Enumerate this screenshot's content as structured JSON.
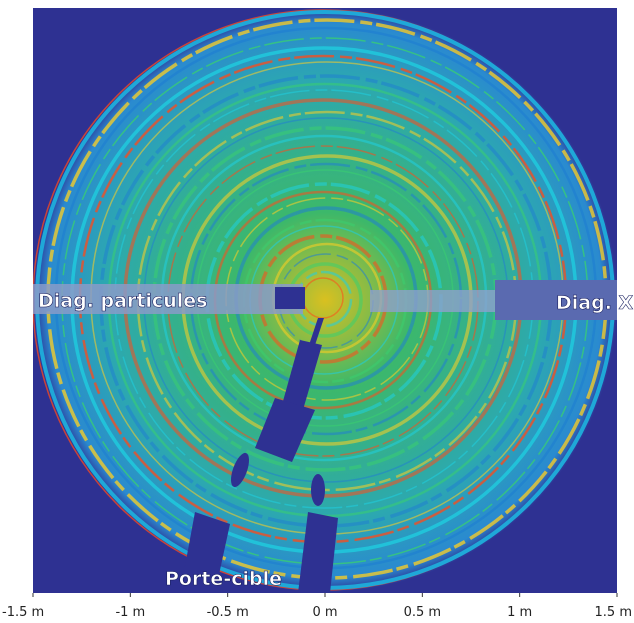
{
  "chart_data": {
    "type": "image",
    "annotations": [
      "Diag. particules",
      "Diag. X",
      "Porte-cible"
    ],
    "xlim": [
      -1.5,
      1.5
    ],
    "xticks": [
      {
        "value": -1.5,
        "label": "-1.5 m"
      },
      {
        "value": -1,
        "label": "-1 m"
      },
      {
        "value": -0.5,
        "label": "-0.5 m"
      },
      {
        "value": 0,
        "label": "0 m"
      },
      {
        "value": 0.5,
        "label": "0.5 m"
      },
      {
        "value": 1,
        "label": "1 m"
      },
      {
        "value": 1.5,
        "label": "1.5 m"
      }
    ]
  }
}
